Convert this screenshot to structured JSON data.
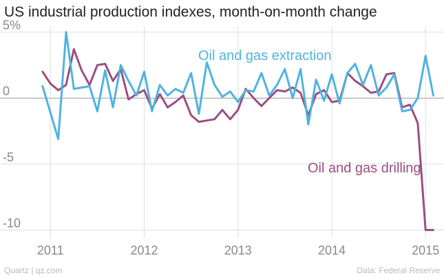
{
  "header": {
    "title": "US industrial production indexes, month-on-month change"
  },
  "footer": {
    "source_left": "Quartz | qz.com",
    "source_right": "Data: Federal Reserve"
  },
  "colors": {
    "extraction": "#4fb3de",
    "drilling": "#9b4d83",
    "grid": "#dddddd",
    "zero": "#999999"
  },
  "chart_data": {
    "type": "line",
    "title": "US industrial production indexes, month-on-month change",
    "xlabel": "",
    "ylabel": "",
    "ylim": [
      -10.5,
      5.5
    ],
    "xlim": [
      2010.8,
      2015.16
    ],
    "y_ticks": [
      5,
      0,
      -5,
      -10
    ],
    "y_tick_labels": [
      "5%",
      "0",
      "-5",
      "-10"
    ],
    "x_ticks": [
      2011,
      2012,
      2013,
      2014,
      2015
    ],
    "x_tick_labels": [
      "2011",
      "2012",
      "2013",
      "2014",
      "2015"
    ],
    "grid": true,
    "x": [
      2010.917,
      2011.0,
      2011.083,
      2011.167,
      2011.25,
      2011.333,
      2011.417,
      2011.5,
      2011.583,
      2011.667,
      2011.75,
      2011.833,
      2011.917,
      2012.0,
      2012.083,
      2012.167,
      2012.25,
      2012.333,
      2012.417,
      2012.5,
      2012.583,
      2012.667,
      2012.75,
      2012.833,
      2012.917,
      2013.0,
      2013.083,
      2013.167,
      2013.25,
      2013.333,
      2013.417,
      2013.5,
      2013.583,
      2013.667,
      2013.75,
      2013.833,
      2013.917,
      2014.0,
      2014.083,
      2014.167,
      2014.25,
      2014.333,
      2014.417,
      2014.5,
      2014.583,
      2014.667,
      2014.75,
      2014.833,
      2014.917,
      2015.0,
      2015.083
    ],
    "series": [
      {
        "name": "Oil and gas extraction",
        "label_position": "upper-right",
        "values": [
          0.9,
          -1.1,
          -3.1,
          5.0,
          0.7,
          0.8,
          0.9,
          -1.0,
          2.1,
          -0.7,
          2.5,
          1.3,
          0.2,
          2.0,
          -1.0,
          1.0,
          0.2,
          0.7,
          0.4,
          1.9,
          -1.2,
          2.7,
          1.0,
          0.1,
          0.5,
          -0.3,
          0.6,
          0.5,
          1.9,
          0.2,
          1.0,
          2.2,
          0.0,
          2.2,
          -2.0,
          1.4,
          -0.2,
          1.8,
          -0.4,
          1.9,
          2.6,
          1.0,
          2.5,
          0.2,
          0.8,
          1.8,
          -1.0,
          -0.9,
          0.0,
          3.2,
          0.2
        ]
      },
      {
        "name": "Oil and gas drilling",
        "label_position": "lower-right",
        "values": [
          2.0,
          1.1,
          0.6,
          1.0,
          3.7,
          2.1,
          1.0,
          2.5,
          2.6,
          1.3,
          2.2,
          -0.1,
          0.3,
          0.6,
          -0.8,
          0.3,
          -0.7,
          -0.3,
          0.2,
          -1.3,
          -1.8,
          -1.7,
          -1.6,
          -0.9,
          -1.6,
          -0.9,
          0.7,
          0.0,
          -0.6,
          0.0,
          0.6,
          0.5,
          0.8,
          0.4,
          -1.3,
          0.3,
          0.6,
          -0.3,
          -0.2,
          1.9,
          1.3,
          0.9,
          0.4,
          0.5,
          1.8,
          1.9,
          -0.7,
          -0.5,
          -1.9,
          -10.0,
          -10.0
        ]
      }
    ]
  }
}
